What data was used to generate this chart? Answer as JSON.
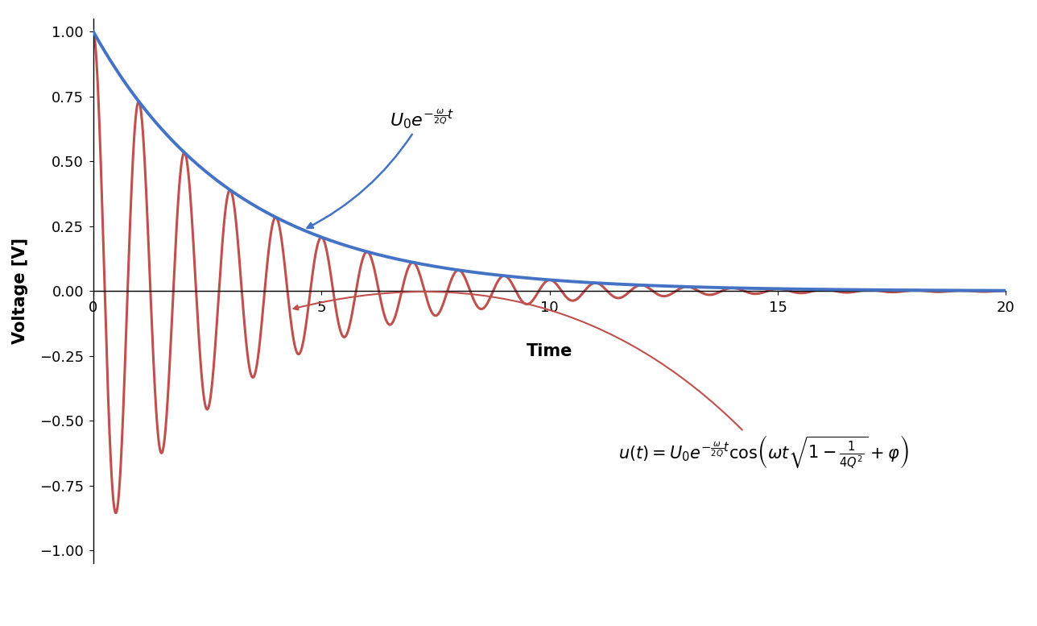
{
  "xlabel": "Time",
  "ylabel": "Voltage [V]",
  "xlim": [
    0,
    20
  ],
  "ylim": [
    -1.05,
    1.05
  ],
  "xticks": [
    0,
    5,
    10,
    15,
    20
  ],
  "yticks": [
    -1,
    -0.75,
    -0.5,
    -0.25,
    0,
    0.25,
    0.5,
    0.75,
    1
  ],
  "Q": 10,
  "omega": 6.2831853,
  "U0": 1.0,
  "t_max": 20,
  "n_points": 10000,
  "envelope_color": "#4472C4",
  "oscillation_color": "#C0504D",
  "envelope_linewidth": 2.8,
  "oscillation_linewidth": 2.2,
  "background_color": "#FFFFFF",
  "figsize": [
    12.88,
    7.77
  ],
  "dpi": 100
}
